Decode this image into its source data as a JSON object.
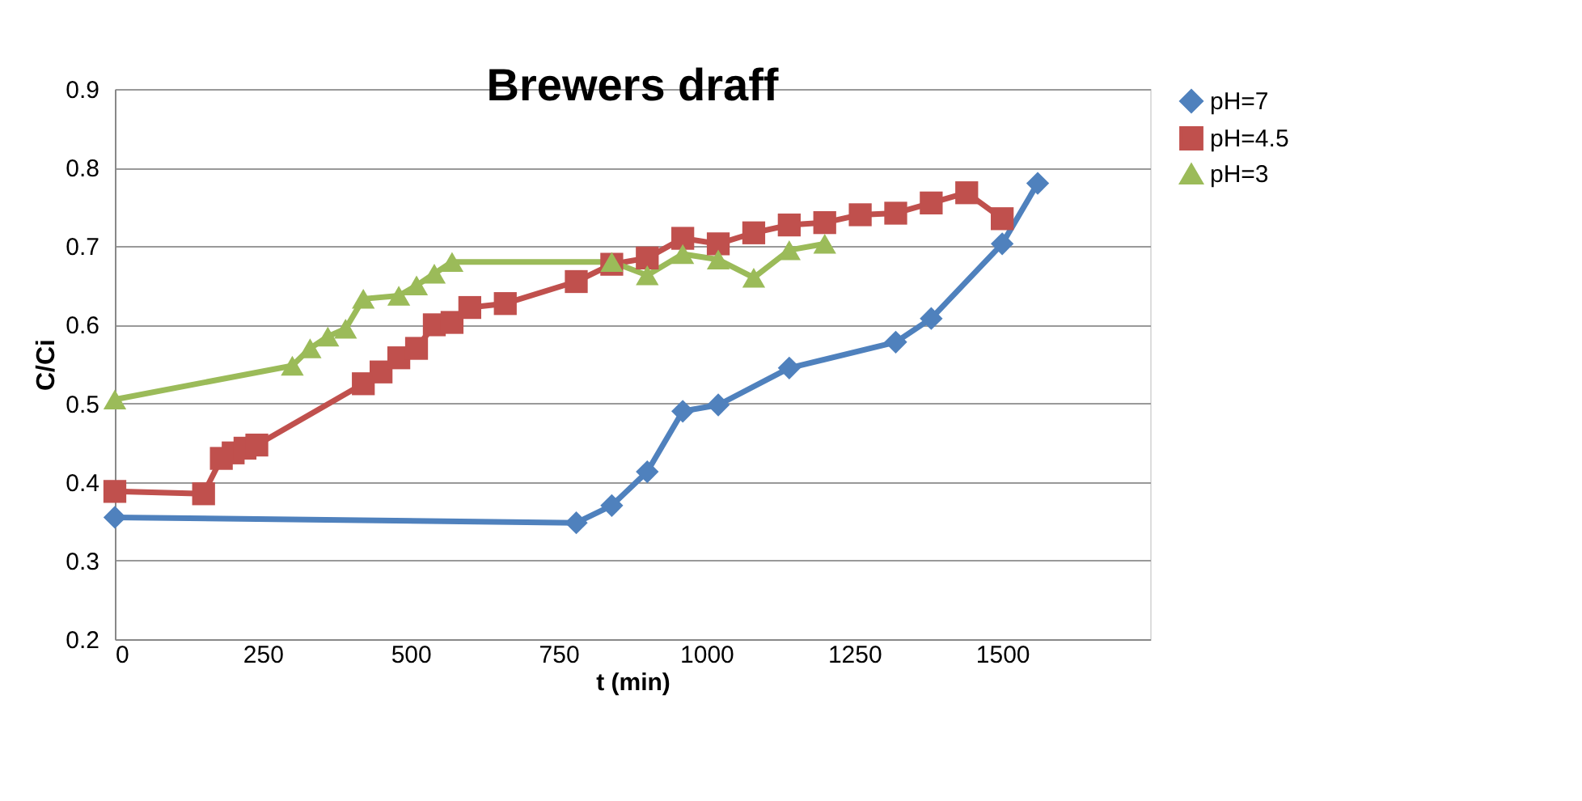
{
  "chart_data": {
    "type": "line",
    "title": "Brewers draff",
    "xlabel": "t (min)",
    "ylabel": "C/Ci",
    "xlim": [
      0,
      1750
    ],
    "xticks": [
      0,
      250,
      500,
      750,
      1000,
      1250,
      1500
    ],
    "ylim": [
      0.2,
      0.9
    ],
    "yticks": [
      0.2,
      0.3,
      0.4,
      0.5,
      0.6,
      0.7,
      0.8,
      0.9
    ],
    "grid": "y",
    "legend": "right",
    "series": [
      {
        "name": "pH=7",
        "color": "#4f81bd",
        "marker": "diamond",
        "x": [
          0,
          780,
          840,
          900,
          960,
          1020,
          1140,
          1320,
          1380,
          1500,
          1560
        ],
        "values": [
          0.355,
          0.348,
          0.37,
          0.413,
          0.49,
          0.498,
          0.545,
          0.578,
          0.608,
          0.703,
          0.78
        ]
      },
      {
        "name": "pH=4.5",
        "color": "#c0504d",
        "marker": "square",
        "x": [
          0,
          150,
          180,
          200,
          220,
          240,
          420,
          450,
          480,
          510,
          540,
          570,
          600,
          660,
          780,
          840,
          900,
          960,
          1020,
          1080,
          1140,
          1200,
          1260,
          1320,
          1380,
          1440,
          1500
        ],
        "values": [
          0.388,
          0.385,
          0.43,
          0.437,
          0.443,
          0.447,
          0.525,
          0.54,
          0.558,
          0.57,
          0.6,
          0.603,
          0.622,
          0.627,
          0.655,
          0.677,
          0.685,
          0.71,
          0.703,
          0.717,
          0.727,
          0.73,
          0.74,
          0.742,
          0.755,
          0.768,
          0.735
        ]
      },
      {
        "name": "pH=3",
        "color": "#9bbb59",
        "marker": "triangle",
        "x": [
          0,
          300,
          330,
          360,
          390,
          420,
          480,
          510,
          540,
          570,
          840,
          900,
          960,
          1020,
          1080,
          1140,
          1200
        ],
        "values": [
          0.505,
          0.548,
          0.57,
          0.585,
          0.595,
          0.633,
          0.637,
          0.65,
          0.665,
          0.68,
          0.68,
          0.663,
          0.69,
          0.683,
          0.66,
          0.695,
          0.703
        ]
      }
    ]
  }
}
